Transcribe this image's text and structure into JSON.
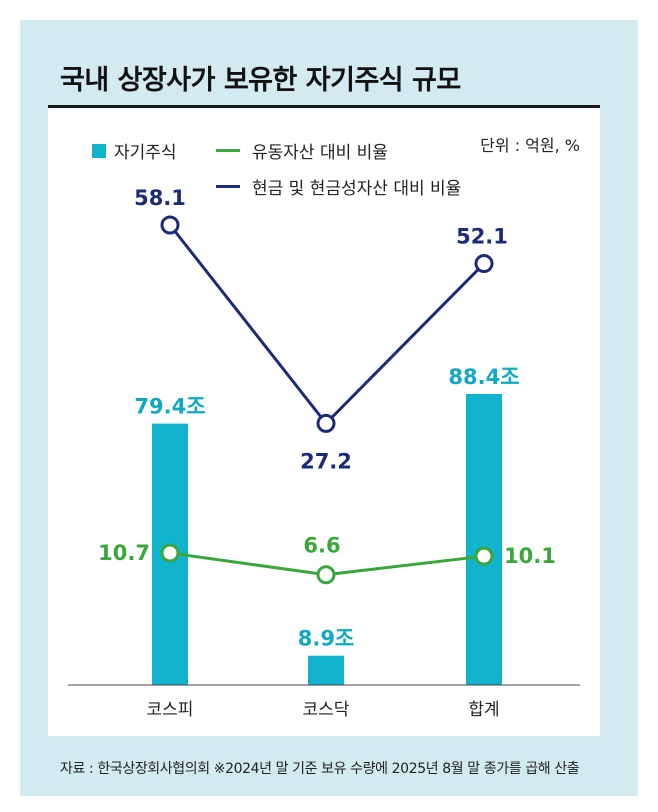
{
  "title": "국내 상장사가 보유한 자기주식 규모",
  "unit": "단위 : 억원, %",
  "legend": {
    "bar": "자기주식",
    "green_line": "유동자산 대비 비율",
    "navy_line": "현금 및 현금성자산 대비 비율"
  },
  "source": "자료 : 한국상장회사협의회  ※2024년 말 기준 보유 수량에 2025년 8월 말 종가를 곱해 산출",
  "colors": {
    "bar": "#12b3cc",
    "green": "#3aa63c",
    "navy": "#1b2b78",
    "bar_label": "#12a8c4"
  },
  "chart_data": {
    "type": "bar",
    "categories": [
      "코스피",
      "코스닥",
      "합계"
    ],
    "series": [
      {
        "name": "자기주식",
        "type": "bar",
        "values": [
          79.4,
          8.9,
          88.4
        ],
        "labels": [
          "79.4조",
          "8.9조",
          "88.4조"
        ]
      },
      {
        "name": "유동자산 대비 비율",
        "type": "line",
        "values": [
          10.7,
          6.6,
          10.1
        ],
        "labels": [
          "10.7",
          "6.6",
          "10.1"
        ]
      },
      {
        "name": "현금 및 현금성자산 대비 비율",
        "type": "line",
        "values": [
          58.1,
          27.2,
          52.1
        ],
        "labels": [
          "58.1",
          "27.2",
          "52.1"
        ]
      }
    ]
  }
}
